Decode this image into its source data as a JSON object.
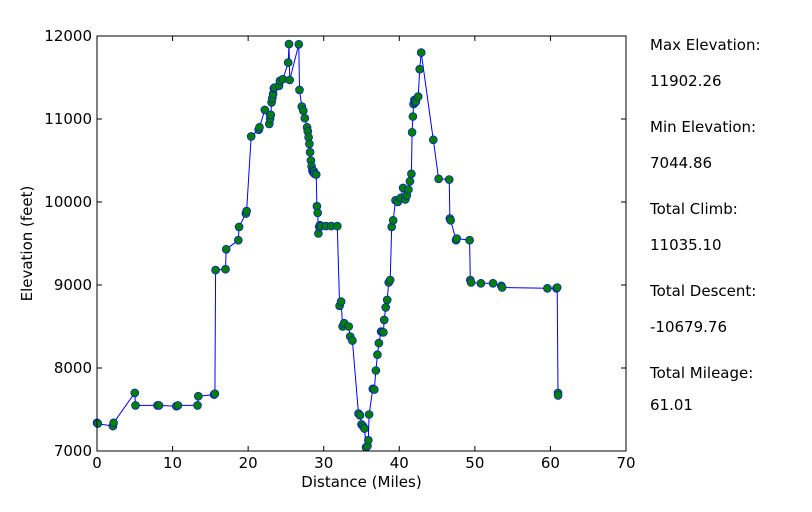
{
  "chart_data": {
    "type": "line",
    "xlabel": "Distance (Miles)",
    "ylabel": "Elevation (feet)",
    "xlim": [
      0,
      70
    ],
    "ylim": [
      7000,
      12000
    ],
    "x_ticks": [
      "0",
      "10",
      "20",
      "30",
      "40",
      "50",
      "60",
      "70"
    ],
    "y_ticks": [
      "7000",
      "8000",
      "9000",
      "10000",
      "11000",
      "12000"
    ],
    "grid": false,
    "line_color": "#0000ff",
    "marker_color": "#007f00",
    "series": [
      {
        "x": [
          0.0,
          0.1,
          2.1,
          2.2,
          5.0,
          5.1,
          8.0,
          8.2,
          10.5,
          10.7,
          13.3,
          13.4,
          15.5,
          15.6,
          15.7,
          17.0,
          17.1,
          18.7,
          18.8,
          19.7,
          19.8,
          20.4,
          21.4,
          21.5,
          22.2,
          22.8,
          22.9,
          23.0,
          23.1,
          23.2,
          23.3,
          23.4,
          23.5,
          24.1,
          24.2,
          24.6,
          25.3,
          25.4,
          25.5,
          26.7,
          26.8,
          27.1,
          27.3,
          27.5,
          27.8,
          27.9,
          28.0,
          28.1,
          28.2,
          28.3,
          28.4,
          28.5,
          28.6,
          28.7,
          28.8,
          29.0,
          29.1,
          29.2,
          29.3,
          29.4,
          29.5,
          29.7,
          30.3,
          31.0,
          31.8,
          32.1,
          32.3,
          32.5,
          32.7,
          33.3,
          33.5,
          33.8,
          34.6,
          34.8,
          35.0,
          35.2,
          35.4,
          35.6,
          35.8,
          35.9,
          36.0,
          36.5,
          36.7,
          36.9,
          37.1,
          37.3,
          37.6,
          37.8,
          37.9,
          38.0,
          38.2,
          38.4,
          38.6,
          38.8,
          39.0,
          39.2,
          39.5,
          39.8,
          40.2,
          40.5,
          40.8,
          41.0,
          41.2,
          41.4,
          41.6,
          41.7,
          41.8,
          41.9,
          42.0,
          42.1,
          42.2,
          42.5,
          42.7,
          42.9,
          44.5,
          45.2,
          46.6,
          46.7,
          46.8,
          47.5,
          47.6,
          49.3,
          49.4,
          49.5,
          50.8,
          52.4,
          53.5,
          53.6,
          59.6,
          60.8,
          60.9,
          61.0,
          61.01
        ],
        "y": [
          7340,
          7330,
          7300,
          7340,
          7700,
          7550,
          7550,
          7550,
          7540,
          7550,
          7550,
          7660,
          7680,
          7690,
          9180,
          9190,
          9430,
          9540,
          9700,
          9860,
          9890,
          10790,
          10870,
          10900,
          11110,
          10940,
          11000,
          11050,
          11200,
          11250,
          11300,
          11370,
          11380,
          11400,
          11460,
          11480,
          11680,
          11902.26,
          11470,
          11900,
          11350,
          11150,
          11100,
          11010,
          10900,
          10850,
          10780,
          10700,
          10600,
          10500,
          10430,
          10380,
          10360,
          10370,
          10340,
          10330,
          9950,
          9870,
          9620,
          9700,
          9720,
          9710,
          9710,
          9710,
          9710,
          8750,
          8800,
          8500,
          8540,
          8500,
          8380,
          8330,
          7450,
          7430,
          7320,
          7300,
          7270,
          7044.86,
          7060,
          7130,
          7440,
          7750,
          7740,
          7970,
          8160,
          8300,
          8440,
          8430,
          8430,
          8580,
          8730,
          8820,
          9030,
          9060,
          9700,
          9780,
          10020,
          10000,
          10050,
          10170,
          10030,
          10080,
          10150,
          10250,
          10340,
          10840,
          11030,
          11180,
          11230,
          11200,
          11210,
          11270,
          11600,
          11800,
          10750,
          10280,
          10270,
          9800,
          9780,
          9540,
          9560,
          9540,
          9060,
          9030,
          9020,
          9020,
          8990,
          8970,
          8960,
          8960,
          8970,
          7700,
          7670
        ]
      }
    ]
  },
  "stats": [
    {
      "label": "Max Elevation:",
      "value": "11902.26"
    },
    {
      "label": "Min Elevation:",
      "value": "7044.86"
    },
    {
      "label": "Total Climb:",
      "value": "11035.10"
    },
    {
      "label": "Total Descent:",
      "value": "-10679.76"
    },
    {
      "label": "Total Mileage:",
      "value": "61.01"
    }
  ]
}
